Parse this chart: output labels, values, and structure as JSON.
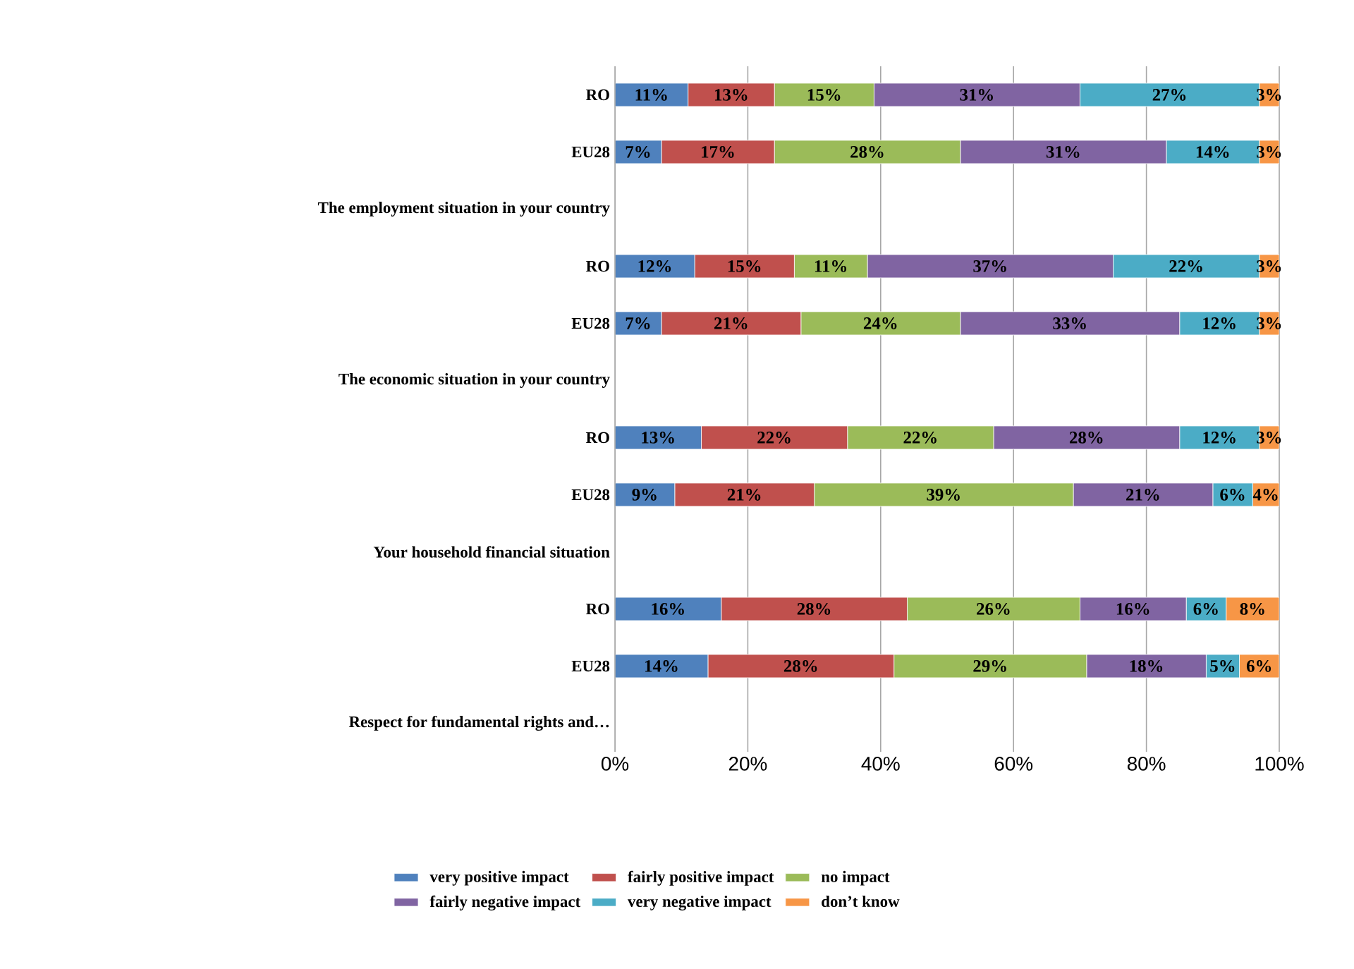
{
  "chart_data": {
    "type": "bar",
    "orientation": "horizontal",
    "stacked": true,
    "categories": [
      "RO",
      "EU28",
      "The employment situation in your country",
      "RO",
      "EU28",
      "The economic situation in your country",
      "RO",
      "EU28",
      "Your household financial situation",
      "RO",
      "EU28",
      "Respect for fundamental rights and…"
    ],
    "series": [
      {
        "name": "very positive impact",
        "color": "#4f81bd",
        "values": [
          11,
          7,
          null,
          12,
          7,
          null,
          13,
          9,
          null,
          16,
          14,
          null
        ],
        "value_labels": [
          "11%",
          "7%",
          null,
          "12%",
          "7%",
          null,
          "13%",
          "9%",
          null,
          "16%",
          "14%",
          null
        ]
      },
      {
        "name": "fairly positive impact",
        "color": "#c0504d",
        "values": [
          13,
          17,
          null,
          15,
          21,
          null,
          22,
          21,
          null,
          28,
          28,
          null
        ],
        "value_labels": [
          "13%",
          "17%",
          null,
          "15%",
          "21%",
          null,
          "22%",
          "21%",
          null,
          "28%",
          "28%",
          null
        ]
      },
      {
        "name": "no impact",
        "color": "#9bbb59",
        "values": [
          15,
          28,
          null,
          11,
          24,
          null,
          22,
          39,
          null,
          26,
          29,
          null
        ],
        "value_labels": [
          "15%",
          "28%",
          null,
          "11%",
          "24%",
          null,
          "22%",
          "39%",
          null,
          "26%",
          "29%",
          null
        ]
      },
      {
        "name": "fairly negative impact",
        "color": "#8064a2",
        "values": [
          31,
          31,
          null,
          37,
          33,
          null,
          28,
          21,
          null,
          16,
          18,
          null
        ],
        "value_labels": [
          "31%",
          "31%",
          null,
          "37%",
          "33%",
          null,
          "28%",
          "21%",
          null,
          "16%",
          "18%",
          null
        ]
      },
      {
        "name": "very negative impact",
        "color": "#4bacc6",
        "values": [
          27,
          14,
          null,
          22,
          12,
          null,
          12,
          6,
          null,
          6,
          5,
          null
        ],
        "value_labels": [
          "27%",
          "14%",
          null,
          "22%",
          "12%",
          null,
          "12%",
          "6%",
          null,
          "6%",
          "5%",
          null
        ]
      },
      {
        "name": "don’t know",
        "color": "#f79646",
        "values": [
          3,
          3,
          null,
          3,
          3,
          null,
          3,
          4,
          null,
          8,
          6,
          null
        ],
        "value_labels": [
          "3%",
          "3%",
          null,
          "3%",
          "3%",
          null,
          "3%",
          "4%",
          null,
          "8%",
          "6%",
          null
        ]
      }
    ],
    "xlim": [
      0,
      100
    ],
    "xticks": [
      {
        "value": 0,
        "label": "0%"
      },
      {
        "value": 20,
        "label": "20%"
      },
      {
        "value": 40,
        "label": "40%"
      },
      {
        "value": 60,
        "label": "60%"
      },
      {
        "value": 80,
        "label": "80%"
      },
      {
        "value": 100,
        "label": "100%"
      }
    ],
    "grid": "x",
    "legend": "bottom"
  }
}
